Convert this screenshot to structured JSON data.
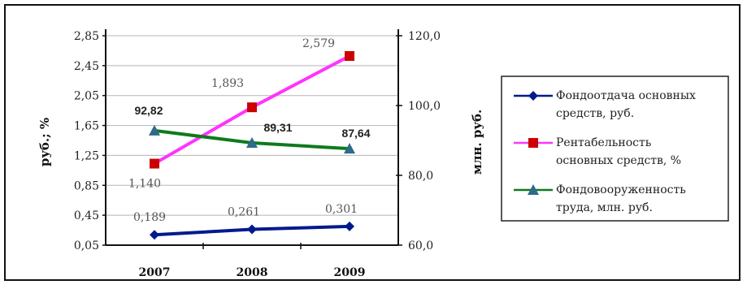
{
  "chart_data": {
    "type": "line",
    "categories": [
      "2007",
      "2008",
      "2009"
    ],
    "y_left": {
      "label": "руб.; %",
      "ticks": [
        "0,05",
        "0,45",
        "0,85",
        "1,25",
        "1,65",
        "2,05",
        "2,45",
        "2,85"
      ],
      "range": [
        0.05,
        2.85
      ]
    },
    "y_right": {
      "label": "млн. руб.",
      "ticks": [
        "60,0",
        "80,0",
        "100,0",
        "120,0"
      ],
      "range": [
        60,
        120
      ]
    },
    "series": [
      {
        "name": "Фондоотдача основных средств, руб.",
        "axis": "left",
        "values": [
          0.189,
          0.261,
          0.301
        ],
        "labels": [
          "0,189",
          "0,261",
          "0,301"
        ],
        "color": "#001a8c",
        "marker": "diamond"
      },
      {
        "name": "Рентабельность основных средств, %",
        "axis": "left",
        "values": [
          1.14,
          1.893,
          2.579
        ],
        "labels": [
          "1,140",
          "1,893",
          "2,579"
        ],
        "color": "#ff33ff",
        "marker_color": "#cc0000",
        "marker": "square"
      },
      {
        "name": "Фондовооруженность труда, млн. руб.",
        "axis": "right",
        "values": [
          92.82,
          89.31,
          87.64
        ],
        "labels": [
          "92,82",
          "89,31",
          "87,64"
        ],
        "color": "#0f7a1e",
        "marker_color": "#2e6a8a",
        "marker": "triangle"
      }
    ],
    "grid": true,
    "legend_position": "right"
  }
}
